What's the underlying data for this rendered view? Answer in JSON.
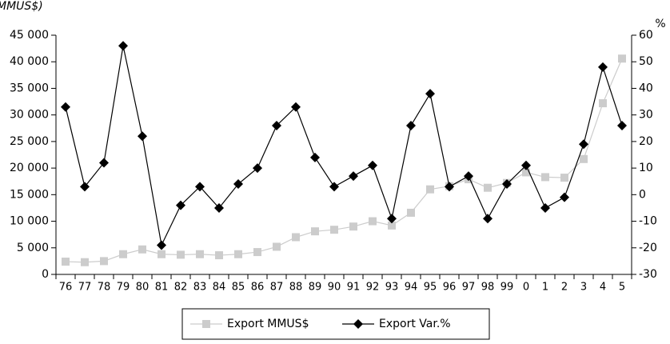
{
  "chart_data": {
    "type": "line",
    "title": "MMUS$)",
    "y2_label": "%",
    "categories": [
      "76",
      "77",
      "78",
      "79",
      "80",
      "81",
      "82",
      "83",
      "84",
      "85",
      "86",
      "87",
      "88",
      "89",
      "90",
      "91",
      "92",
      "93",
      "94",
      "95",
      "96",
      "97",
      "98",
      "99",
      "0",
      "1",
      "2",
      "3",
      "4",
      "5"
    ],
    "series": [
      {
        "name": "Export MMUS$",
        "color": "#cccccc",
        "marker": "square",
        "values": [
          2400,
          2300,
          2500,
          3800,
          4700,
          3800,
          3700,
          3800,
          3600,
          3800,
          4200,
          5200,
          7000,
          8100,
          8400,
          9000,
          10000,
          9200,
          11600,
          16000,
          16600,
          17900,
          16300,
          17200,
          19200,
          18300,
          18200,
          21700,
          32200,
          40600
        ]
      },
      {
        "name": "Export Var.%",
        "color": "#000000",
        "marker": "diamond",
        "axis": "y2",
        "values": [
          33,
          3,
          12,
          56,
          22,
          -19,
          -4,
          3,
          -5,
          4,
          10,
          26,
          33,
          14,
          3,
          7,
          11,
          -9,
          26,
          38,
          3,
          7,
          -9,
          4,
          11,
          -5,
          -1,
          19,
          48,
          26
        ]
      }
    ],
    "ylim": [
      0,
      45000
    ],
    "yticks": [
      0,
      {
        "value": 5000,
        "label": "5 000"
      },
      {
        "value": 10000,
        "label": "10 000"
      },
      {
        "value": 15000,
        "label": "15 000"
      },
      {
        "value": 20000,
        "label": "20 000"
      },
      {
        "value": 25000,
        "label": "25 000"
      },
      {
        "value": 30000,
        "label": "30 000"
      },
      {
        "value": 35000,
        "label": "35 000"
      },
      {
        "value": 40000,
        "label": "40 000"
      },
      {
        "value": 45000,
        "label": "45 000"
      }
    ],
    "y2lim": [
      -30,
      60
    ],
    "y2ticks": [
      -30,
      -20,
      -10,
      0,
      10,
      20,
      30,
      40,
      50,
      60
    ],
    "legend": "bottom"
  }
}
